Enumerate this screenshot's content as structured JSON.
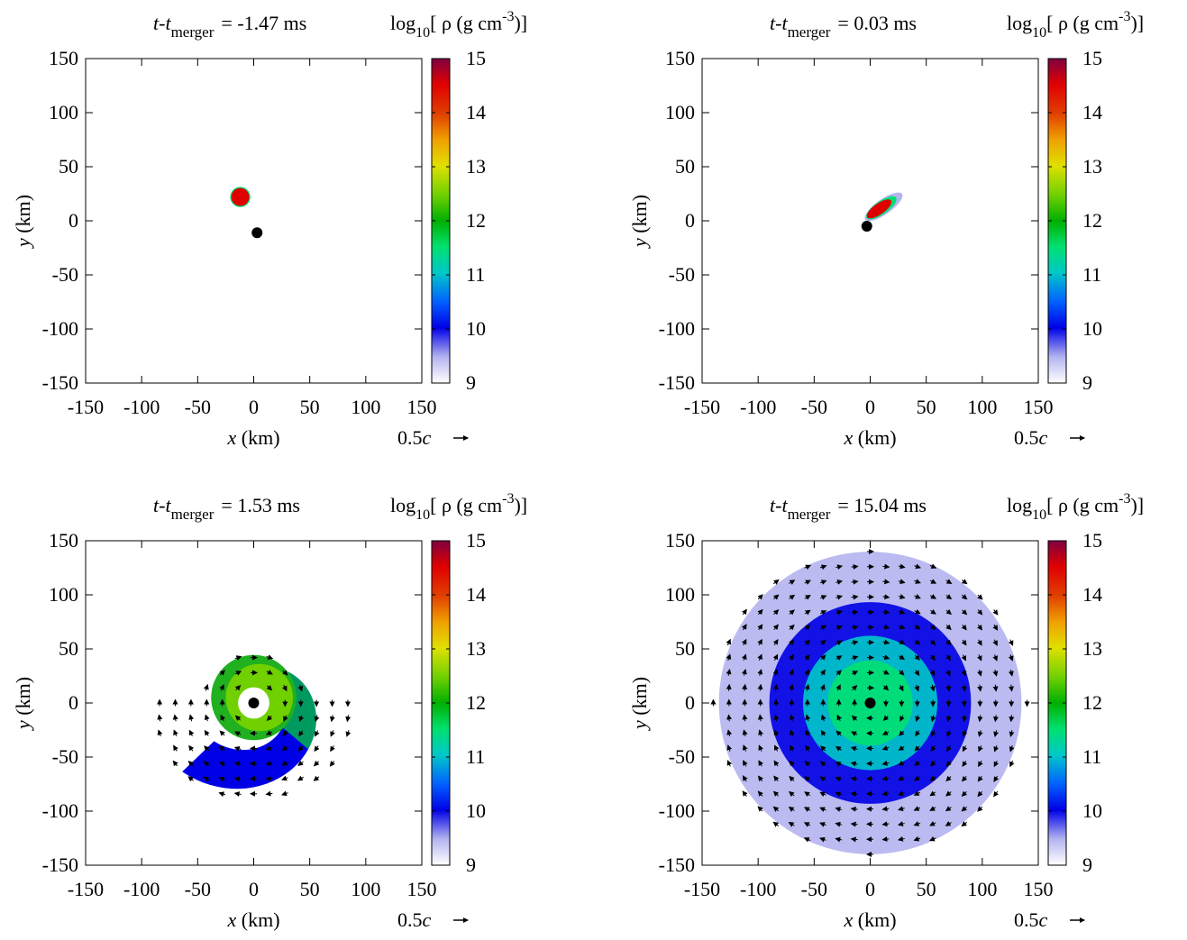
{
  "chart_data": [
    {
      "type": "heatmap",
      "title_prefix": "t-t",
      "title_sub": "merger",
      "title_value": "= -1.47 ms",
      "colorbar_label": {
        "prefix": "log",
        "sub": "10",
        "mid": "[ ρ (g cm",
        "sup": "-3",
        "suffix": ")]"
      },
      "xlabel": {
        "var": "x",
        "unit": " (km)"
      },
      "ylabel": {
        "var": "y",
        "unit": " (km)"
      },
      "xlim": [
        -150,
        150
      ],
      "ylim": [
        -150,
        150
      ],
      "xticks": [
        "-150",
        "-100",
        "-50",
        "0",
        "50",
        "100",
        "150"
      ],
      "yticks": [
        "150",
        "100",
        "50",
        "0",
        "-50",
        "-100",
        "-150"
      ],
      "colorbar_range": [
        9,
        15
      ],
      "colorbar_ticks": [
        "15",
        "14",
        "13",
        "12",
        "11",
        "10",
        "9"
      ],
      "vector_scale": {
        "value": "0.5",
        "unit": "c"
      },
      "black_hole": [
        3,
        -11
      ],
      "features": [
        {
          "kind": "blob",
          "cx": -12,
          "cy": 22,
          "r": 10,
          "log_rho": 9.3
        },
        {
          "kind": "blob",
          "cx": -12,
          "cy": 22,
          "r": 9,
          "log_rho": 11.5
        },
        {
          "kind": "blob",
          "cx": -12,
          "cy": 22,
          "r": 8,
          "log_rho": 14.7
        }
      ]
    },
    {
      "type": "heatmap",
      "title_prefix": "t-t",
      "title_sub": "merger",
      "title_value": "= 0.03 ms",
      "colorbar_label": {
        "prefix": "log",
        "sub": "10",
        "mid": "[ ρ (g cm",
        "sup": "-3",
        "suffix": ")]"
      },
      "xlabel": {
        "var": "x",
        "unit": " (km)"
      },
      "ylabel": {
        "var": "y",
        "unit": " (km)"
      },
      "xlim": [
        -150,
        150
      ],
      "ylim": [
        -150,
        150
      ],
      "xticks": [
        "-150",
        "-100",
        "-50",
        "0",
        "50",
        "100",
        "150"
      ],
      "yticks": [
        "150",
        "100",
        "50",
        "0",
        "-50",
        "-100",
        "-150"
      ],
      "colorbar_range": [
        9,
        15
      ],
      "colorbar_ticks": [
        "15",
        "14",
        "13",
        "12",
        "11",
        "10",
        "9"
      ],
      "vector_scale": {
        "value": "0.5",
        "unit": "c"
      },
      "black_hole": [
        -3,
        -5
      ],
      "features": [
        {
          "kind": "ellipse",
          "cx": 12,
          "cy": 13,
          "rx": 20,
          "ry": 7,
          "rot": -35,
          "log_rho": 9.8
        },
        {
          "kind": "ellipse",
          "cx": 10,
          "cy": 12,
          "rx": 16,
          "ry": 6,
          "rot": -35,
          "log_rho": 11.5
        },
        {
          "kind": "ellipse",
          "cx": 8,
          "cy": 11,
          "rx": 13,
          "ry": 5,
          "rot": -35,
          "log_rho": 14.7
        }
      ]
    },
    {
      "type": "heatmap",
      "title_prefix": "t-t",
      "title_sub": "merger",
      "title_value": "= 1.53 ms",
      "colorbar_label": {
        "prefix": "log",
        "sub": "10",
        "mid": "[ ρ (g cm",
        "sup": "-3",
        "suffix": ")]"
      },
      "xlabel": {
        "var": "x",
        "unit": " (km)"
      },
      "ylabel": {
        "var": "y",
        "unit": " (km)"
      },
      "xlim": [
        -150,
        150
      ],
      "ylim": [
        -150,
        150
      ],
      "xticks": [
        "-150",
        "-100",
        "-50",
        "0",
        "50",
        "100",
        "150"
      ],
      "yticks": [
        "150",
        "100",
        "50",
        "0",
        "-50",
        "-100",
        "-150"
      ],
      "colorbar_range": [
        9,
        15
      ],
      "colorbar_ticks": [
        "15",
        "14",
        "13",
        "12",
        "11",
        "10",
        "9"
      ],
      "vector_scale": {
        "value": "0.5",
        "unit": "c"
      },
      "black_hole": [
        0,
        0
      ],
      "features": [
        {
          "kind": "spiral_arm",
          "log_rho": 10.3
        },
        {
          "kind": "inner_ring",
          "log_rho": 12.8
        }
      ]
    },
    {
      "type": "heatmap",
      "title_prefix": "t-t",
      "title_sub": "merger",
      "title_value": "= 15.04 ms",
      "colorbar_label": {
        "prefix": "log",
        "sub": "10",
        "mid": "[ ρ (g cm",
        "sup": "-3",
        "suffix": ")]"
      },
      "xlabel": {
        "var": "x",
        "unit": " (km)"
      },
      "ylabel": {
        "var": "y",
        "unit": " (km)"
      },
      "xlim": [
        -150,
        150
      ],
      "ylim": [
        -150,
        150
      ],
      "xticks": [
        "-150",
        "-100",
        "-50",
        "0",
        "50",
        "100",
        "150"
      ],
      "yticks": [
        "150",
        "100",
        "50",
        "0",
        "-50",
        "-100",
        "-150"
      ],
      "colorbar_range": [
        9,
        15
      ],
      "colorbar_ticks": [
        "15",
        "14",
        "13",
        "12",
        "11",
        "10",
        "9"
      ],
      "vector_scale": {
        "value": "0.5",
        "unit": "c"
      },
      "black_hole": [
        0,
        0
      ],
      "features": [
        {
          "kind": "disk",
          "r": 135,
          "log_rho": 9.5
        },
        {
          "kind": "disk",
          "r": 90,
          "log_rho": 10.2
        },
        {
          "kind": "disk",
          "r": 60,
          "log_rho": 11.0
        },
        {
          "kind": "disk",
          "r": 38,
          "log_rho": 11.8
        }
      ]
    }
  ]
}
